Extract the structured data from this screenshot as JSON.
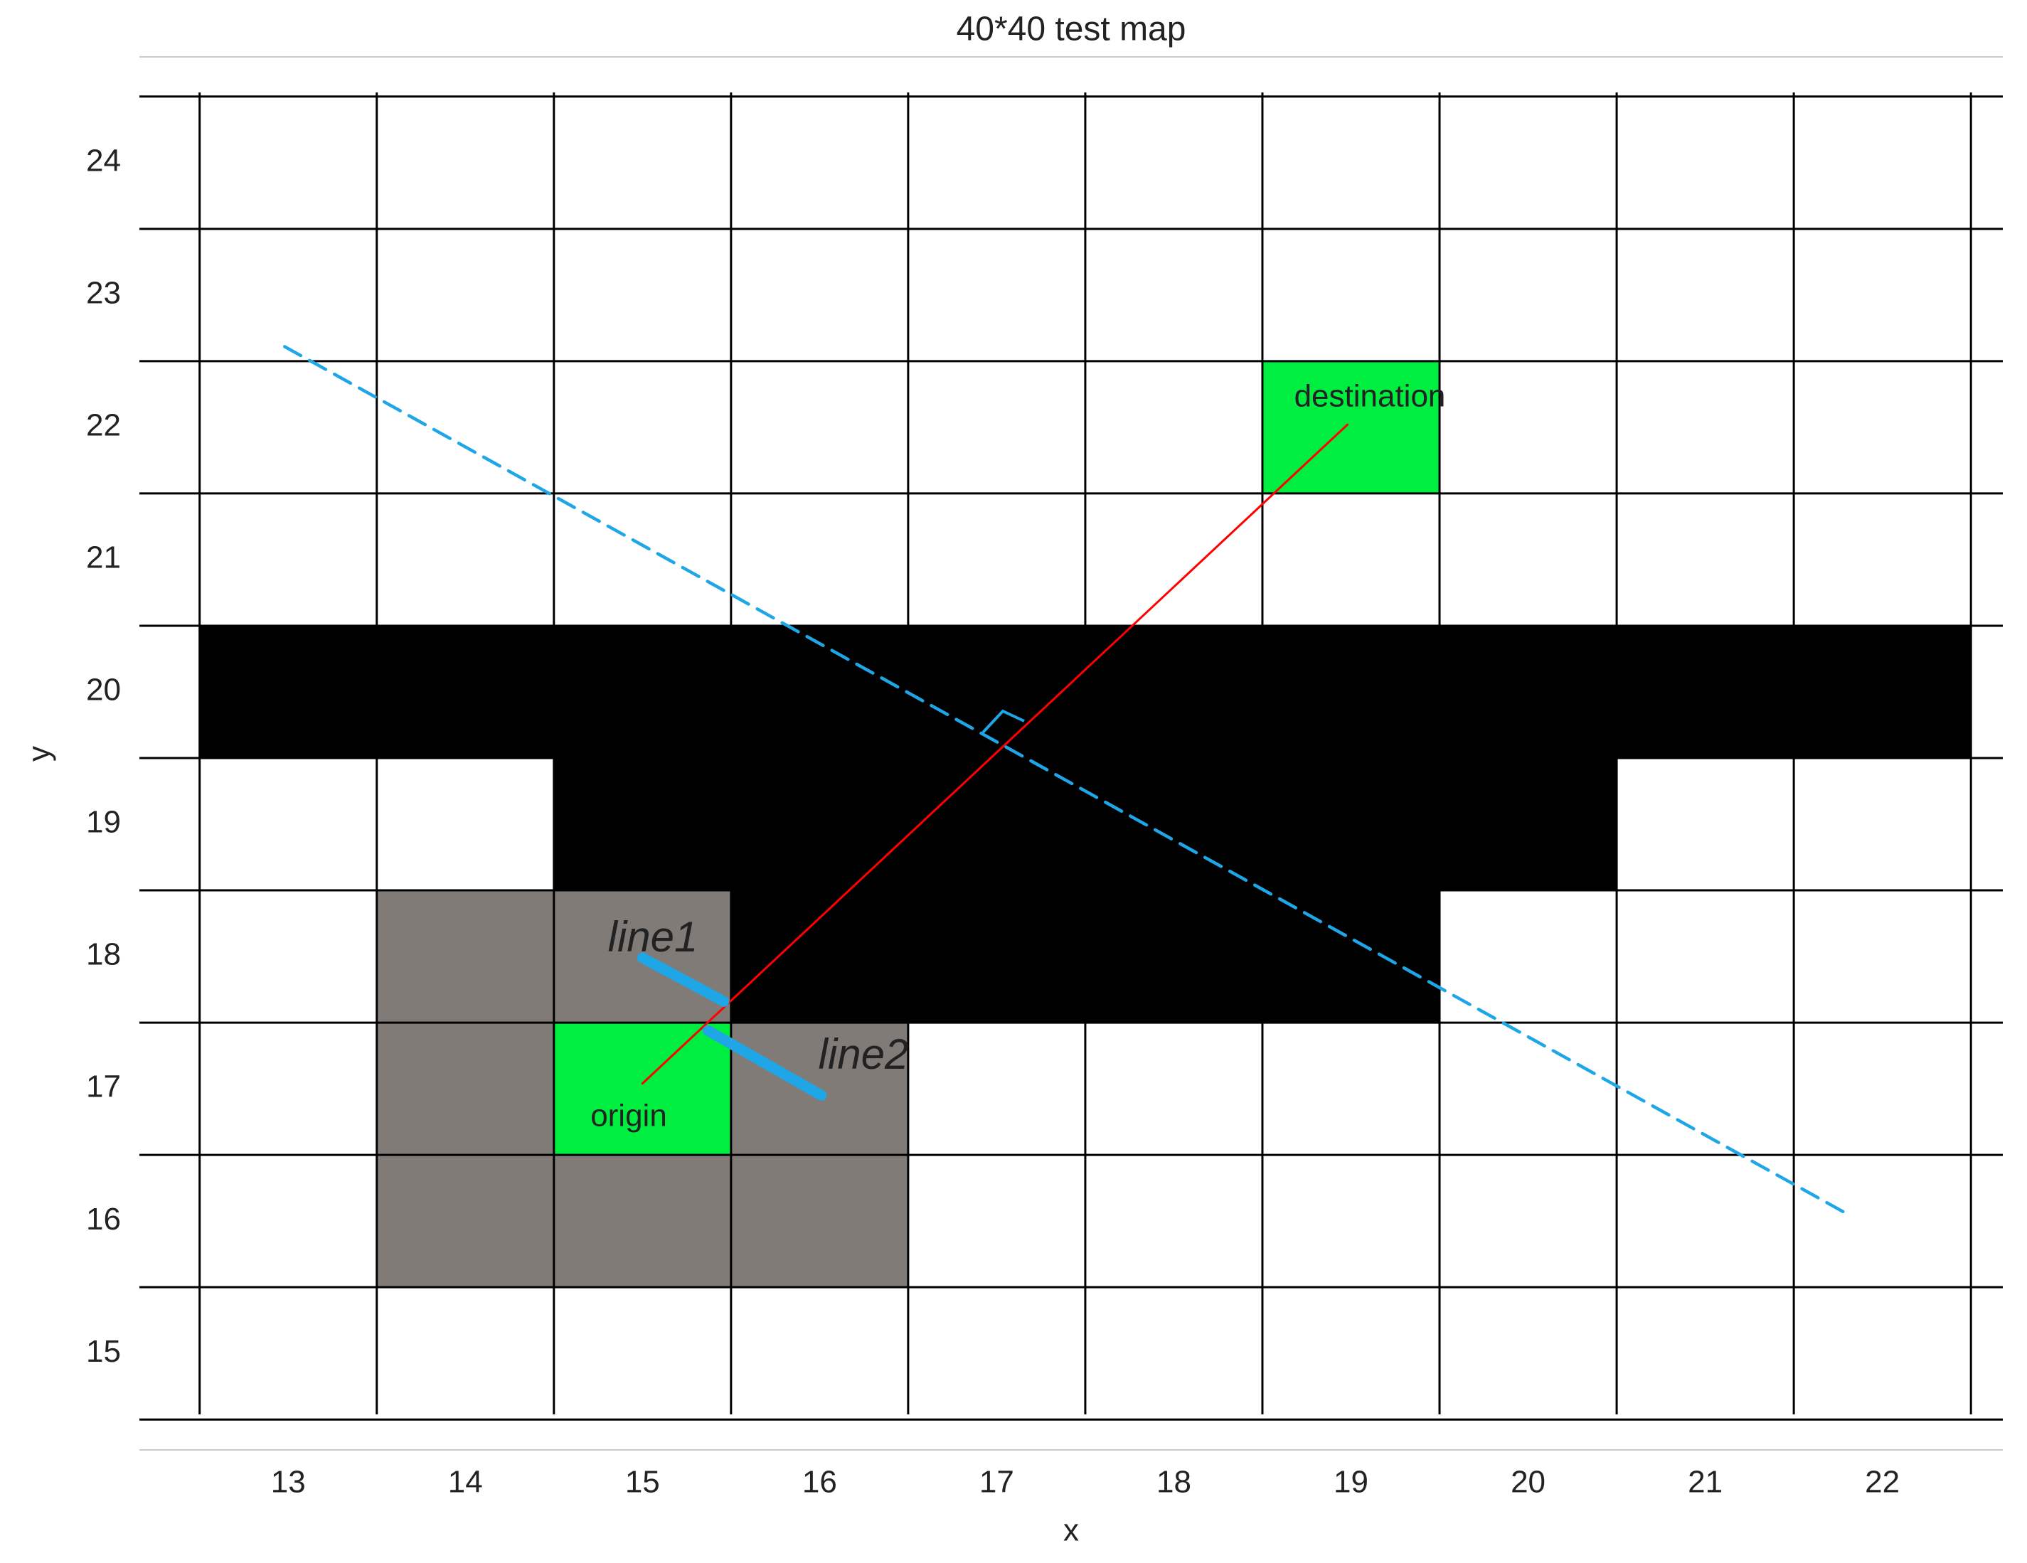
{
  "chart_data": {
    "type": "gridmap",
    "title": "40*40 test map",
    "x_label": "x",
    "y_label": "y",
    "xlim": [
      12.16,
      22.68
    ],
    "ylim": [
      14.27,
      24.8
    ],
    "xticks": [
      13,
      14,
      15,
      16,
      17,
      18,
      19,
      20,
      21,
      22
    ],
    "yticks": [
      15,
      16,
      17,
      18,
      19,
      20,
      21,
      22,
      23,
      24
    ],
    "cell_edges_x": [
      12.5,
      13.5,
      14.5,
      15.5,
      16.5,
      17.5,
      18.5,
      19.5,
      20.5,
      21.5,
      22.5
    ],
    "cell_edges_y": [
      14.5,
      15.5,
      16.5,
      17.5,
      18.5,
      19.5,
      20.5,
      21.5,
      22.5,
      23.5,
      24.5
    ],
    "cell_groups": [
      {
        "color": "#000000",
        "cells": [
          [
            13,
            20
          ],
          [
            14,
            20
          ],
          [
            15,
            20
          ],
          [
            16,
            20
          ],
          [
            17,
            20
          ],
          [
            18,
            20
          ],
          [
            19,
            20
          ],
          [
            20,
            20
          ],
          [
            21,
            20
          ],
          [
            22,
            20
          ],
          [
            15,
            19
          ],
          [
            16,
            19
          ],
          [
            17,
            19
          ],
          [
            18,
            19
          ],
          [
            19,
            19
          ],
          [
            20,
            19
          ],
          [
            16,
            18
          ],
          [
            17,
            18
          ],
          [
            18,
            18
          ],
          [
            19,
            18
          ]
        ]
      },
      {
        "color": "#807b77",
        "cells": [
          [
            14,
            18
          ],
          [
            15,
            18
          ],
          [
            14,
            17
          ],
          [
            16,
            17
          ],
          [
            14,
            16
          ],
          [
            15,
            16
          ],
          [
            16,
            16
          ]
        ]
      },
      {
        "color": "#00ee40",
        "cells": [
          [
            15,
            17
          ],
          [
            19,
            22
          ]
        ]
      }
    ],
    "lines": [
      {
        "color": "#ff0000",
        "style": "solid",
        "width": 1,
        "x": [
          15.0,
          18.98
        ],
        "y": [
          17.04,
          22.02
        ]
      },
      {
        "color": "#1ea6e6",
        "style": "dashed",
        "width": 1.5,
        "x": [
          12.98,
          21.78
        ],
        "y": [
          22.61,
          16.07
        ]
      },
      {
        "color": "#1ea6e6",
        "style": "solid",
        "width": 5,
        "x": [
          15.0,
          15.46
        ],
        "y": [
          17.99,
          17.66
        ]
      },
      {
        "color": "#1ea6e6",
        "style": "solid",
        "width": 5,
        "x": [
          15.37,
          16.01
        ],
        "y": [
          17.44,
          16.95
        ]
      }
    ],
    "annotations": [
      "line1",
      "line2",
      "origin",
      "destination"
    ]
  }
}
